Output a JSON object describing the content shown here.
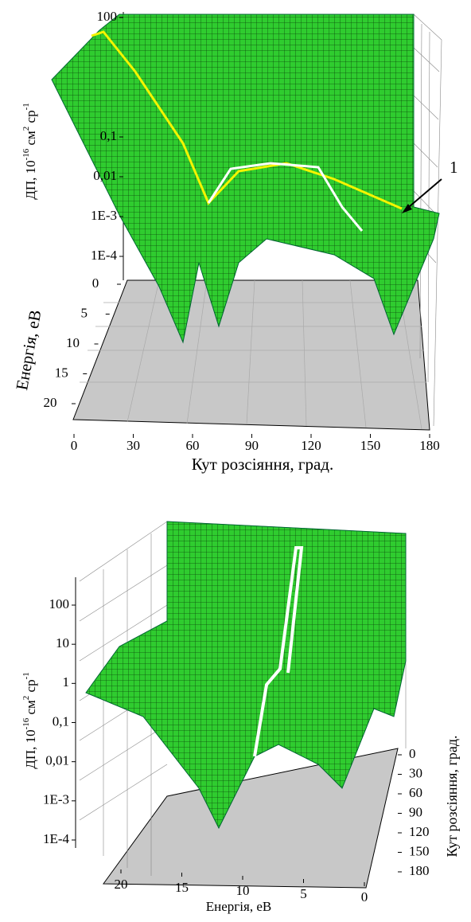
{
  "chart_data": [
    {
      "type": "surface",
      "surface_color": "#22c022",
      "zlabel_parts": [
        "ДП, 10",
        "-16",
        " см",
        "2",
        " ср",
        "-1"
      ],
      "zscale": "log",
      "zlim": [
        0.0001,
        100
      ],
      "zticks": [
        100,
        {
          "value": 0.1,
          "label": "0,1"
        },
        {
          "value": 0.01,
          "label": "0,01"
        },
        {
          "value": 0.001,
          "label": "1E-3"
        },
        {
          "value": 0.0001,
          "label": "1E-4"
        }
      ],
      "ylabel": "Енергія, еВ",
      "ylim": [
        0,
        20
      ],
      "yticks": [
        0,
        5,
        10,
        15,
        20
      ],
      "xlabel": "Кут розсіяння, град.",
      "xlim": [
        0,
        180
      ],
      "xticks": [
        0,
        30,
        60,
        90,
        120,
        150,
        180
      ],
      "annotation": "1"
    },
    {
      "type": "surface",
      "surface_color": "#22c022",
      "zlabel_parts": [
        "ДП, 10",
        "-16",
        " см",
        "2",
        " ср",
        "-1"
      ],
      "zscale": "log",
      "zlim": [
        0.0001,
        100
      ],
      "zticks": [
        100,
        10,
        1,
        {
          "value": 0.1,
          "label": "0,1"
        },
        {
          "value": 0.01,
          "label": "0,01"
        },
        {
          "value": 0.001,
          "label": "1E-3"
        },
        {
          "value": 0.0001,
          "label": "1E-4"
        }
      ],
      "xlabel": "Енергія, еВ",
      "xlim": [
        0,
        20
      ],
      "xticks": [
        20,
        15,
        10,
        5,
        0
      ],
      "ylabel": "Кут розсіяння, град.",
      "ylim": [
        0,
        180
      ],
      "yticks": [
        0,
        30,
        60,
        90,
        120,
        150,
        180
      ]
    }
  ]
}
